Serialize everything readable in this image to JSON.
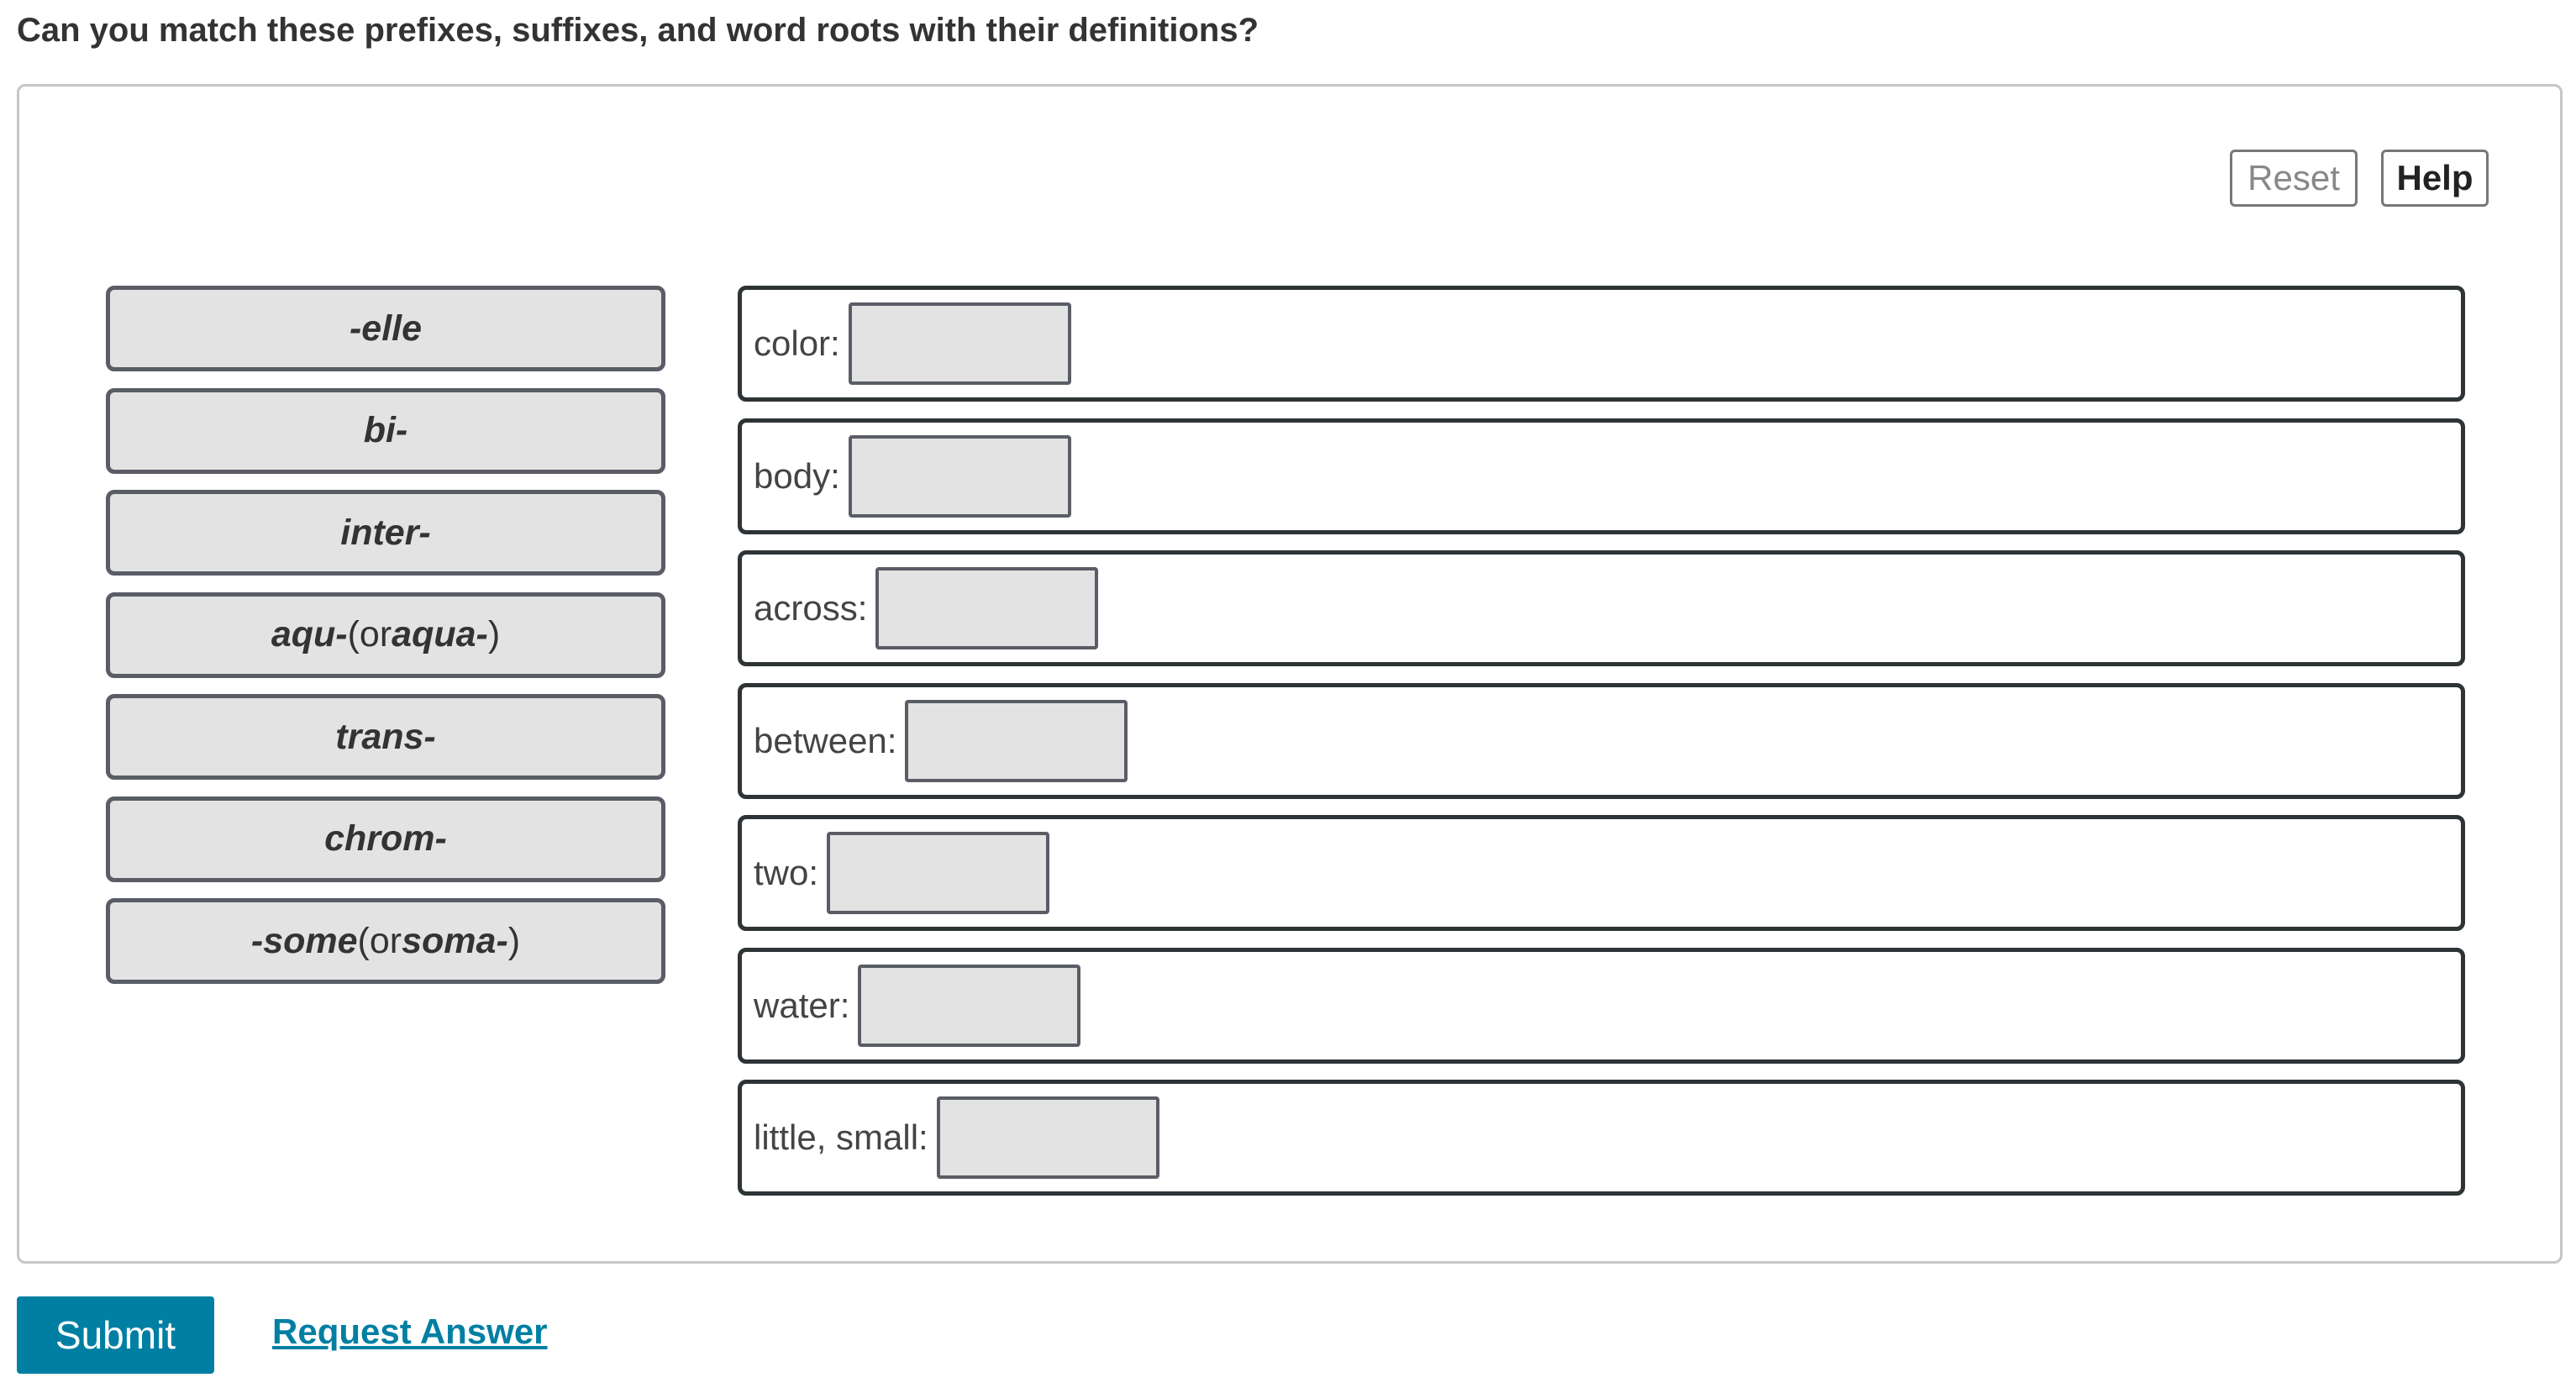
{
  "question": "Can you match these prefixes, suffixes, and word roots with their definitions?",
  "toolbar": {
    "reset_label": "Reset",
    "help_label": "Help"
  },
  "items": [
    {
      "main": "-elle",
      "rest": ""
    },
    {
      "main": "bi-",
      "rest": ""
    },
    {
      "main": "inter-",
      "rest": ""
    },
    {
      "main": "aqu-",
      "rest": " (or ",
      "alt": "aqua-",
      "close": ")"
    },
    {
      "main": "trans-",
      "rest": ""
    },
    {
      "main": "chrom-",
      "rest": ""
    },
    {
      "main": "-some",
      "rest": " (or ",
      "alt": "soma-",
      "close": ")"
    }
  ],
  "targets": [
    {
      "label": "color:",
      "value": ""
    },
    {
      "label": "body:",
      "value": ""
    },
    {
      "label": "across:",
      "value": ""
    },
    {
      "label": "between:",
      "value": ""
    },
    {
      "label": "two:",
      "value": ""
    },
    {
      "label": "water:",
      "value": ""
    },
    {
      "label": "little, small:",
      "value": ""
    }
  ],
  "footer": {
    "submit_label": "Submit",
    "request_label": "Request Answer"
  },
  "colors": {
    "accent": "#007fa3",
    "item_bg": "#e3e3e3"
  }
}
